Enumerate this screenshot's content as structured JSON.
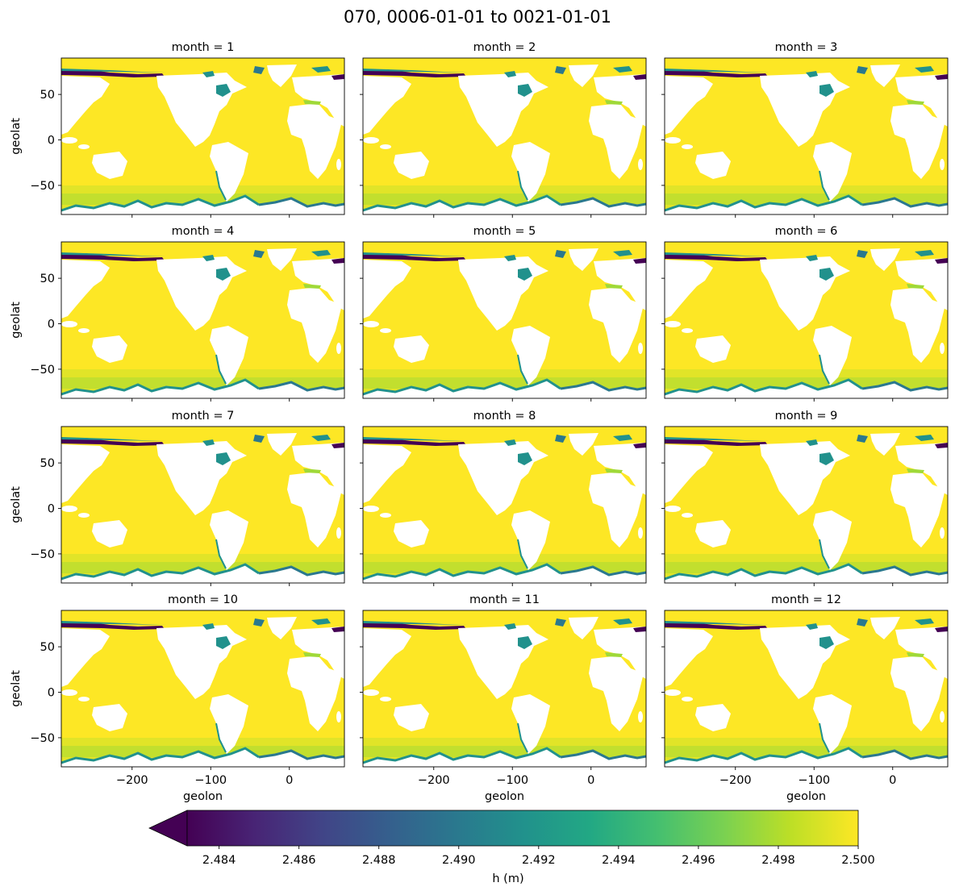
{
  "chart_data": {
    "type": "heatmap",
    "title": "070, 0006-01-01 to 0021-01-01",
    "subtitle_prefix": "month = ",
    "panels": [
      {
        "month": 1,
        "label": "month = 1"
      },
      {
        "month": 2,
        "label": "month = 2"
      },
      {
        "month": 3,
        "label": "month = 3"
      },
      {
        "month": 4,
        "label": "month = 4"
      },
      {
        "month": 5,
        "label": "month = 5"
      },
      {
        "month": 6,
        "label": "month = 6"
      },
      {
        "month": 7,
        "label": "month = 7"
      },
      {
        "month": 8,
        "label": "month = 8"
      },
      {
        "month": 9,
        "label": "month = 9"
      },
      {
        "month": 10,
        "label": "month = 10"
      },
      {
        "month": 11,
        "label": "month = 11"
      },
      {
        "month": 12,
        "label": "month = 12"
      }
    ],
    "xlabel": "geolon",
    "ylabel": "geolat",
    "xlim": [
      -290,
      70
    ],
    "ylim": [
      -82,
      90
    ],
    "xticks": [
      -200,
      -100,
      0
    ],
    "xtick_labels": [
      "−200",
      "−100",
      "0"
    ],
    "yticks": [
      50,
      0,
      -50
    ],
    "ytick_labels": [
      "50",
      "0",
      "−50"
    ],
    "colorbar": {
      "label": "h (m)",
      "vmin": 2.4832,
      "vmax": 2.5,
      "extend": "min",
      "ticks": [
        2.484,
        2.486,
        2.488,
        2.49,
        2.492,
        2.494,
        2.496,
        2.498,
        2.5
      ],
      "tick_labels": [
        "2.484",
        "2.486",
        "2.488",
        "2.490",
        "2.492",
        "2.494",
        "2.496",
        "2.498",
        "2.500"
      ],
      "colormap": "viridis"
    },
    "colors": {
      "ocean": "#fde725",
      "shallow": "#9fd938",
      "mid": "#21918c",
      "deep": "#440154",
      "land": "#ffffff"
    }
  }
}
